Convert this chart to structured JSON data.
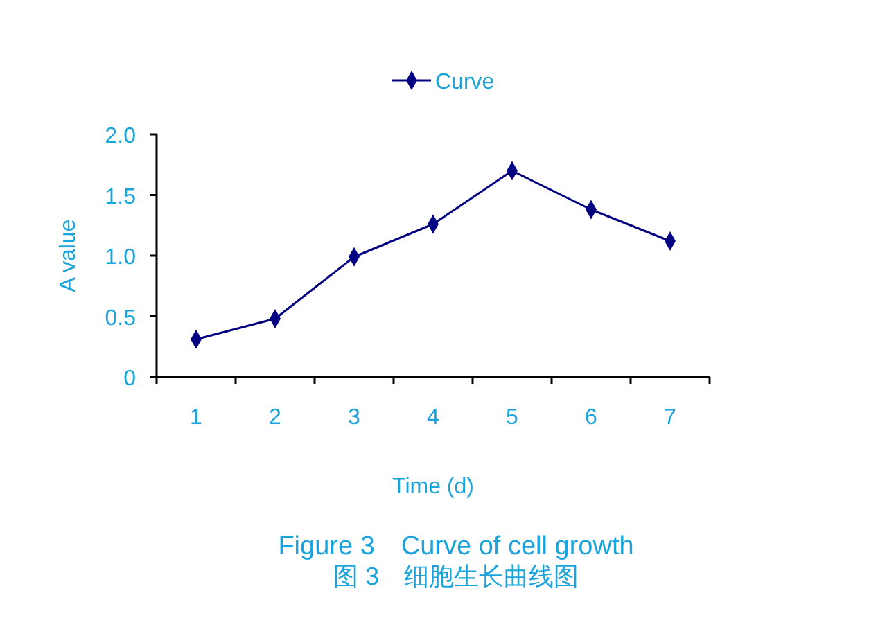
{
  "chart_data": {
    "type": "line",
    "xlabel": "Time (d)",
    "ylabel": "A value",
    "categories": [
      "1",
      "2",
      "3",
      "4",
      "5",
      "6",
      "7"
    ],
    "series": [
      {
        "name": "Curve",
        "color": "#000080",
        "values": [
          0.31,
          0.48,
          0.99,
          1.26,
          1.7,
          1.38,
          1.12
        ]
      }
    ],
    "ylim": [
      0,
      2
    ],
    "yticks": [
      0,
      {
        "value": 0.5,
        "label": "0.5"
      },
      {
        "value": 1,
        "label": "1.0"
      },
      {
        "value": 1.5,
        "label": "1.5"
      },
      {
        "value": 2,
        "label": "2.0"
      }
    ],
    "legend": "top",
    "marker": "diamond",
    "line_style": "solid",
    "grid": false,
    "annotations": [
      "Figure 3　Curve of cell growth",
      "图 3　细胞生长曲线图"
    ]
  }
}
